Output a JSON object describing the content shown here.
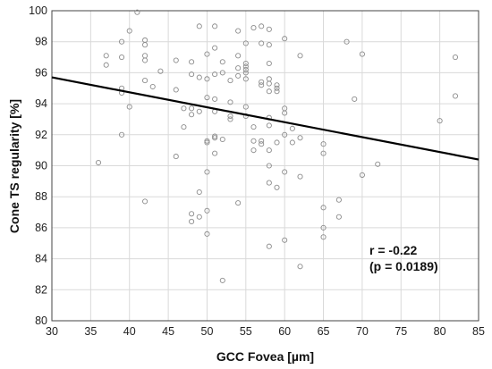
{
  "chart_data": {
    "type": "scatter",
    "xlabel": "GCC Fovea [µm]",
    "ylabel": "Cone TS regularity [%]",
    "xlim": [
      30,
      85
    ],
    "ylim": [
      80,
      100
    ],
    "xticks": [
      30,
      35,
      40,
      45,
      50,
      55,
      60,
      65,
      70,
      75,
      80,
      85
    ],
    "yticks": [
      80,
      82,
      84,
      86,
      88,
      90,
      92,
      94,
      96,
      98,
      100
    ],
    "grid": true,
    "point_color": "#8c8c8c",
    "line_color": "#000000",
    "trendline": {
      "x": [
        30,
        85
      ],
      "y": [
        95.7,
        90.4
      ]
    },
    "annotations": [
      "r = -0.22",
      "(p = 0.0189)"
    ],
    "points": [
      [
        36,
        90.2
      ],
      [
        37,
        96.5
      ],
      [
        37,
        97.1
      ],
      [
        39,
        98.0
      ],
      [
        39,
        97.0
      ],
      [
        39,
        95.0
      ],
      [
        39,
        94.7
      ],
      [
        39,
        92.0
      ],
      [
        40,
        98.7
      ],
      [
        40,
        93.8
      ],
      [
        41,
        99.9
      ],
      [
        42,
        98.1
      ],
      [
        42,
        97.8
      ],
      [
        42,
        97.1
      ],
      [
        42,
        96.8
      ],
      [
        42,
        95.5
      ],
      [
        42,
        87.7
      ],
      [
        43,
        95.1
      ],
      [
        44,
        96.1
      ],
      [
        46,
        96.8
      ],
      [
        46,
        94.9
      ],
      [
        46,
        90.6
      ],
      [
        47,
        93.7
      ],
      [
        47,
        92.5
      ],
      [
        48,
        96.7
      ],
      [
        48,
        95.9
      ],
      [
        48,
        93.7
      ],
      [
        48,
        93.3
      ],
      [
        48,
        86.9
      ],
      [
        48,
        86.4
      ],
      [
        49,
        99.0
      ],
      [
        49,
        95.7
      ],
      [
        49,
        93.5
      ],
      [
        49,
        88.3
      ],
      [
        49,
        86.7
      ],
      [
        50,
        97.2
      ],
      [
        50,
        95.6
      ],
      [
        50,
        94.4
      ],
      [
        50,
        91.6
      ],
      [
        50,
        91.5
      ],
      [
        50,
        89.6
      ],
      [
        50,
        87.1
      ],
      [
        50,
        85.6
      ],
      [
        51,
        99.0
      ],
      [
        51,
        97.6
      ],
      [
        51,
        95.9
      ],
      [
        51,
        94.3
      ],
      [
        51,
        93.5
      ],
      [
        51,
        91.9
      ],
      [
        51,
        91.8
      ],
      [
        51,
        90.8
      ],
      [
        52,
        96.7
      ],
      [
        52,
        96.0
      ],
      [
        52,
        91.7
      ],
      [
        52,
        82.6
      ],
      [
        53,
        95.5
      ],
      [
        53,
        93.2
      ],
      [
        53,
        93.0
      ],
      [
        53,
        94.1
      ],
      [
        54,
        98.7
      ],
      [
        54,
        97.1
      ],
      [
        54,
        96.3
      ],
      [
        54,
        95.8
      ],
      [
        54,
        87.6
      ],
      [
        55,
        97.9
      ],
      [
        55,
        96.6
      ],
      [
        55,
        96.4
      ],
      [
        55,
        96.2
      ],
      [
        55,
        96.0
      ],
      [
        55,
        95.6
      ],
      [
        55,
        93.8
      ],
      [
        55,
        93.2
      ],
      [
        56,
        98.9
      ],
      [
        56,
        92.5
      ],
      [
        56,
        91.6
      ],
      [
        56,
        91.0
      ],
      [
        57,
        99.0
      ],
      [
        57,
        97.9
      ],
      [
        57,
        95.4
      ],
      [
        57,
        95.2
      ],
      [
        57,
        91.6
      ],
      [
        57,
        91.4
      ],
      [
        58,
        98.8
      ],
      [
        58,
        97.8
      ],
      [
        58,
        96.6
      ],
      [
        58,
        95.6
      ],
      [
        58,
        95.3
      ],
      [
        58,
        94.8
      ],
      [
        58,
        93.1
      ],
      [
        58,
        92.6
      ],
      [
        58,
        91.0
      ],
      [
        58,
        90.0
      ],
      [
        58,
        88.9
      ],
      [
        58,
        84.8
      ],
      [
        59,
        95.2
      ],
      [
        59,
        95.0
      ],
      [
        59,
        94.8
      ],
      [
        59,
        91.5
      ],
      [
        59,
        88.6
      ],
      [
        60,
        98.2
      ],
      [
        60,
        93.7
      ],
      [
        60,
        93.4
      ],
      [
        60,
        92.0
      ],
      [
        60,
        89.6
      ],
      [
        60,
        85.2
      ],
      [
        61,
        92.4
      ],
      [
        61,
        91.5
      ],
      [
        62,
        97.1
      ],
      [
        62,
        91.8
      ],
      [
        62,
        89.3
      ],
      [
        62,
        83.5
      ],
      [
        65,
        91.4
      ],
      [
        65,
        90.8
      ],
      [
        65,
        87.3
      ],
      [
        65,
        86.0
      ],
      [
        65,
        85.4
      ],
      [
        67,
        87.8
      ],
      [
        67,
        86.7
      ],
      [
        68,
        98.0
      ],
      [
        69,
        94.3
      ],
      [
        70,
        97.2
      ],
      [
        70,
        89.4
      ],
      [
        72,
        90.1
      ],
      [
        80,
        92.9
      ],
      [
        82,
        97.0
      ],
      [
        82,
        94.5
      ]
    ]
  }
}
